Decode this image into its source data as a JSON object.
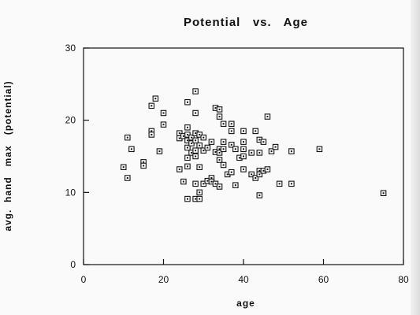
{
  "chart_data": {
    "type": "scatter",
    "title": "Potential   vs.   Age",
    "xlabel": "age",
    "ylabel": "avg.  hand   max   (potential)",
    "xlim": [
      0,
      80
    ],
    "ylim": [
      0,
      30
    ],
    "xticks": [
      0,
      20,
      40,
      60,
      80
    ],
    "yticks": [
      0,
      10,
      20,
      30
    ],
    "grid": false,
    "marker": "square-dot",
    "points": [
      [
        10,
        13.5
      ],
      [
        11,
        17.6
      ],
      [
        11,
        12
      ],
      [
        12,
        16
      ],
      [
        15,
        14.2
      ],
      [
        15,
        13.7
      ],
      [
        17,
        22
      ],
      [
        17,
        18.5
      ],
      [
        17,
        18
      ],
      [
        18,
        23
      ],
      [
        19,
        15.7
      ],
      [
        20,
        21
      ],
      [
        20,
        19.4
      ],
      [
        24,
        18.2
      ],
      [
        24,
        17.5
      ],
      [
        24,
        13.2
      ],
      [
        25,
        11.5
      ],
      [
        25,
        17.8
      ],
      [
        26,
        22.5
      ],
      [
        26,
        19
      ],
      [
        26,
        18
      ],
      [
        26,
        17.2
      ],
      [
        26,
        16.2
      ],
      [
        26,
        14.8
      ],
      [
        26,
        13.6
      ],
      [
        26,
        9.1
      ],
      [
        27,
        17.6
      ],
      [
        27,
        16.8
      ],
      [
        27,
        15.5
      ],
      [
        28,
        24
      ],
      [
        28,
        21
      ],
      [
        28,
        18.2
      ],
      [
        28,
        17.2
      ],
      [
        28,
        15.8
      ],
      [
        28,
        15
      ],
      [
        28,
        11.2
      ],
      [
        28,
        9.1
      ],
      [
        29,
        18
      ],
      [
        29,
        16.5
      ],
      [
        29,
        13.5
      ],
      [
        29,
        10
      ],
      [
        29,
        9.1
      ],
      [
        30,
        17.6
      ],
      [
        30,
        15.8
      ],
      [
        30,
        11.2
      ],
      [
        31,
        16.2
      ],
      [
        31,
        11.6
      ],
      [
        32,
        17
      ],
      [
        32,
        12
      ],
      [
        32,
        11.5
      ],
      [
        33,
        21.7
      ],
      [
        33,
        15.6
      ],
      [
        33,
        11.2
      ],
      [
        34,
        21.5
      ],
      [
        34,
        20.5
      ],
      [
        34,
        16
      ],
      [
        34,
        15.5
      ],
      [
        34,
        14.5
      ],
      [
        34,
        10.8
      ],
      [
        35,
        19.5
      ],
      [
        35,
        17
      ],
      [
        35,
        16
      ],
      [
        35,
        13.8
      ],
      [
        36,
        12.5
      ],
      [
        37,
        19.5
      ],
      [
        37,
        18.5
      ],
      [
        37,
        16.6
      ],
      [
        37,
        12.8
      ],
      [
        38,
        16
      ],
      [
        38,
        11
      ],
      [
        39,
        14.8
      ],
      [
        40,
        18.5
      ],
      [
        40,
        17
      ],
      [
        40,
        16
      ],
      [
        40,
        15
      ],
      [
        40,
        13.2
      ],
      [
        42,
        15.5
      ],
      [
        42,
        12.5
      ],
      [
        43,
        18.5
      ],
      [
        43,
        12
      ],
      [
        44,
        17.3
      ],
      [
        44,
        15.5
      ],
      [
        44,
        13
      ],
      [
        44,
        12.5
      ],
      [
        44,
        9.6
      ],
      [
        45,
        17
      ],
      [
        45,
        13
      ],
      [
        46,
        20.5
      ],
      [
        46,
        13.2
      ],
      [
        47,
        15.7
      ],
      [
        48,
        16.3
      ],
      [
        49,
        11.2
      ],
      [
        52,
        15.7
      ],
      [
        52,
        11.2
      ],
      [
        59,
        16
      ],
      [
        75,
        9.9
      ]
    ]
  }
}
